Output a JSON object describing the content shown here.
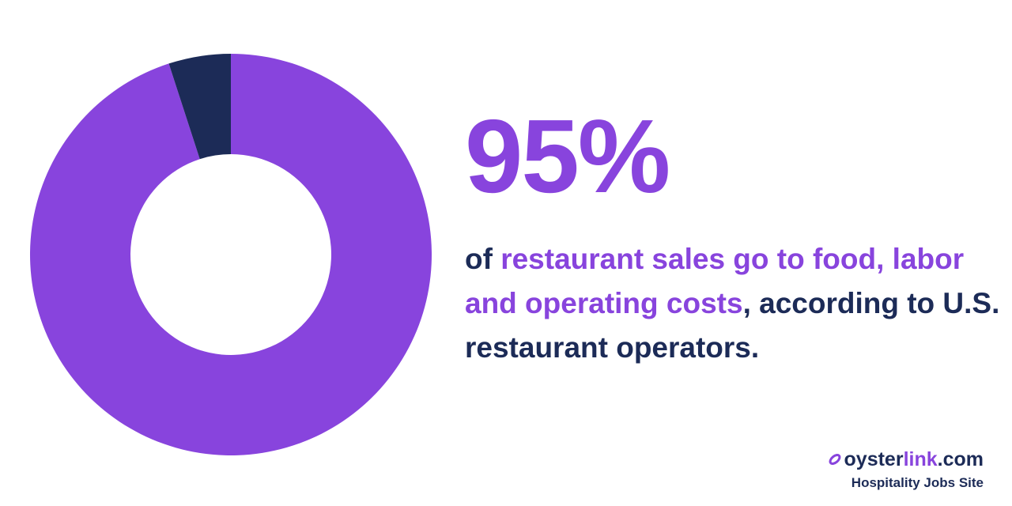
{
  "chart_data": {
    "type": "pie",
    "style": "donut",
    "slices": [
      {
        "value": 95,
        "color": "#8844dd"
      },
      {
        "value": 5,
        "color": "#1c2b57"
      }
    ]
  },
  "headline": {
    "percent": "95%"
  },
  "caption": {
    "part1": "of ",
    "part2": "restaurant sales go to food, labor and operating costs",
    "part3": ", according to U.S. restaurant operators."
  },
  "brand": {
    "name_a": "oyster",
    "name_b": "link",
    "name_c": ".com",
    "tagline": "Hospitality Jobs Site",
    "logo_icon": "oyster-link-icon"
  },
  "colors": {
    "accent": "#8844dd",
    "navy": "#1c2b57",
    "background": "#ffffff"
  }
}
